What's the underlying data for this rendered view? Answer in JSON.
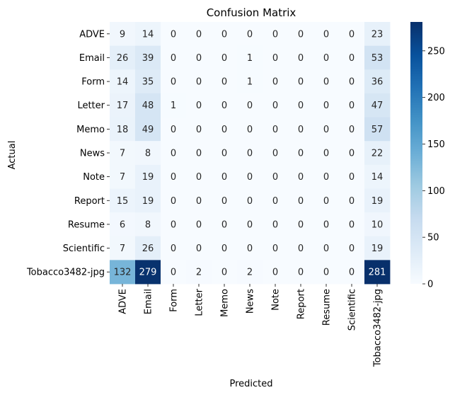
{
  "chart_data": {
    "type": "heatmap",
    "title": "Confusion Matrix",
    "xlabel": "Predicted",
    "ylabel": "Actual",
    "x_categories": [
      "ADVE",
      "Email",
      "Form",
      "Letter",
      "Memo",
      "News",
      "Note",
      "Report",
      "Resume",
      "Scientific",
      "Tobacco3482-jpg"
    ],
    "y_categories": [
      "ADVE",
      "Email",
      "Form",
      "Letter",
      "Memo",
      "News",
      "Note",
      "Report",
      "Resume",
      "Scientific",
      "Tobacco3482-jpg"
    ],
    "values": [
      [
        9,
        14,
        0,
        0,
        0,
        0,
        0,
        0,
        0,
        0,
        23
      ],
      [
        26,
        39,
        0,
        0,
        0,
        1,
        0,
        0,
        0,
        0,
        53
      ],
      [
        14,
        35,
        0,
        0,
        0,
        1,
        0,
        0,
        0,
        0,
        36
      ],
      [
        17,
        48,
        1,
        0,
        0,
        0,
        0,
        0,
        0,
        0,
        47
      ],
      [
        18,
        49,
        0,
        0,
        0,
        0,
        0,
        0,
        0,
        0,
        57
      ],
      [
        7,
        8,
        0,
        0,
        0,
        0,
        0,
        0,
        0,
        0,
        22
      ],
      [
        7,
        19,
        0,
        0,
        0,
        0,
        0,
        0,
        0,
        0,
        14
      ],
      [
        15,
        19,
        0,
        0,
        0,
        0,
        0,
        0,
        0,
        0,
        19
      ],
      [
        6,
        8,
        0,
        0,
        0,
        0,
        0,
        0,
        0,
        0,
        10
      ],
      [
        7,
        26,
        0,
        0,
        0,
        0,
        0,
        0,
        0,
        0,
        19
      ],
      [
        132,
        279,
        0,
        2,
        0,
        2,
        0,
        0,
        0,
        0,
        281
      ]
    ],
    "colormap": "Blues",
    "color_range": [
      0,
      281
    ],
    "colorbar_ticks": [
      0,
      50,
      100,
      150,
      200,
      250
    ],
    "grid": false,
    "legend": "colorbar-right"
  }
}
